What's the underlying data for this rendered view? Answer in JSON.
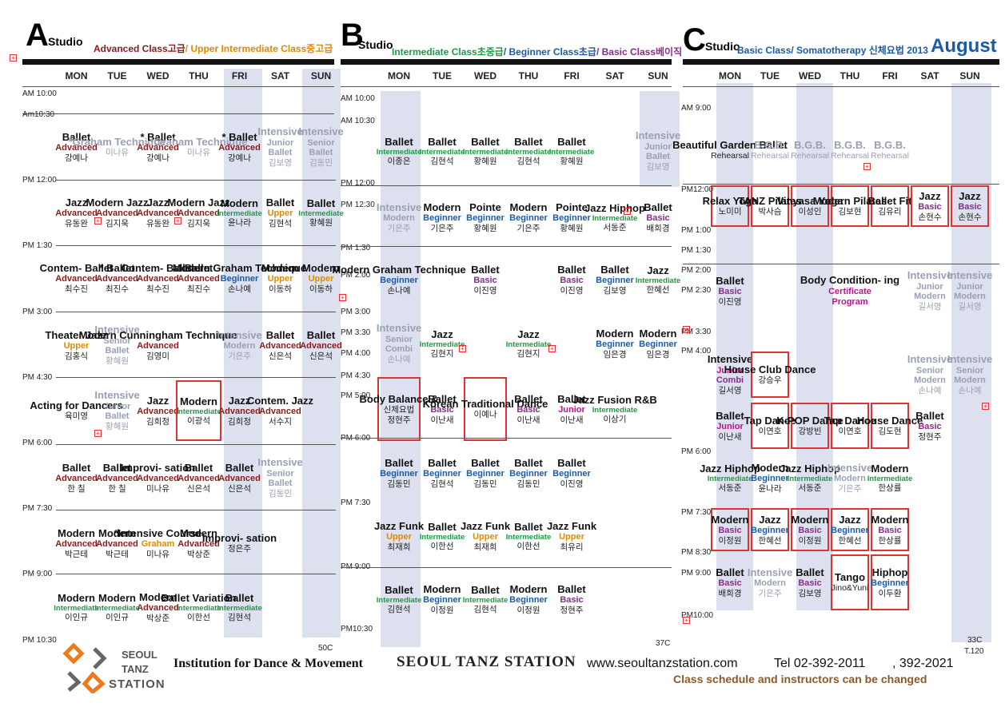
{
  "studios": {
    "A": {
      "letter": "A",
      "word": "Studio",
      "title_adv": "Advanced Class고급",
      "title_sep": "/ ",
      "title_up": "Upper Intermediate Class중고급",
      "corner": "50C"
    },
    "B": {
      "letter": "B",
      "word": "Studio",
      "title_int": "Intermediate Class초중급",
      "title_sep1": "/ ",
      "title_beg": "Beginner Class초급",
      "title_sep2": "/ ",
      "title_basic": "Basic Class베이직",
      "corner": "37C"
    },
    "C": {
      "letter": "C",
      "word": "Studio",
      "title": "Basic Class/ Somatotherapy 신체요법 2013",
      "month": "August",
      "corner": "33C",
      "corner2": "T.120"
    }
  },
  "days": [
    "MON",
    "TUE",
    "WED",
    "THU",
    "FRI",
    "SAT",
    "SUN"
  ],
  "times": {
    "A": [
      "AM 10:00",
      "Am10:30",
      "PM 12:00",
      "PM 1:30",
      "PM 3:00",
      "PM 4:30",
      "PM 6:00",
      "PM 7:30",
      "PM 9:00",
      "PM 10:30"
    ],
    "B": [
      "AM 10:00",
      "AM 10:30",
      "PM 12:00",
      "PM 12:30",
      "PM 1:30",
      "PM 2:00",
      "PM 3:00",
      "PM 3:30",
      "PM 4:00",
      "PM 4:30",
      "PM 5:00",
      "PM 6:00",
      "PM 7:30",
      "PM 9:00",
      "PM10:30"
    ],
    "C": [
      "AM 9:00",
      "PM12:00",
      "PM 1:00",
      "PM 1:30",
      "PM 2:00",
      "PM 2:30",
      "PM 3:30",
      "PM 4:00",
      "PM 6:00",
      "PM 7:30",
      "PM 8:30",
      "PM 9:00",
      "PM10:00"
    ]
  },
  "cells": {
    "A": [
      [
        {
          "t": "Ballet",
          "lv": "Advanced",
          "n": "강예나"
        },
        {
          "t": "*Graham Technique",
          "n": "미나유"
        },
        {
          "t": "* Ballet",
          "lv": "Advanced",
          "n": "강예나"
        },
        {
          "t": "*Graham Technique",
          "n": "미나유"
        },
        {
          "t": "* Ballet",
          "lv": "Advanced",
          "n": "강예나"
        },
        {
          "t": "Intensive",
          "lv": "Junior",
          "lv2": "Ballet",
          "n": "김보영"
        },
        {
          "t": "Intensive",
          "lv": "Senior",
          "lv2": "Ballet",
          "n": "김동민"
        }
      ],
      [
        {
          "t": "Jazz",
          "lv": "Advanced",
          "n": "유동완"
        },
        {
          "t": "Modern Jazz",
          "lv": "Advanced",
          "n": "김지욱"
        },
        {
          "t": "Jazz",
          "lv": "Advanced",
          "n": "유동완"
        },
        {
          "t": "Modern Jazz",
          "lv": "Advanced",
          "n": "김지욱"
        },
        {
          "t": "Modern",
          "lv": "Intermediate",
          "n": "윤나라"
        },
        {
          "t": "Ballet",
          "lv": "Upper",
          "n": "김현석"
        },
        {
          "t": "Ballet",
          "lv": "Intermediate",
          "n": "황혜원"
        }
      ],
      [
        {
          "t": "Contem- Ballet",
          "lv": "Advanced",
          "n": "최수진"
        },
        {
          "t": "* Ballet",
          "lv": "Advanced",
          "n": "최진수"
        },
        {
          "t": "Contem- Ballet",
          "lv": "Advanced",
          "n": "최수진"
        },
        {
          "t": "Ballet",
          "lv": "Advanced",
          "n": "최진수"
        },
        {
          "t": "Modern Graham Technique",
          "lv": "Beginner",
          "n": "손나예"
        },
        {
          "t": "Modern",
          "lv": "Upper",
          "n": "이동하"
        },
        {
          "t": "Modern",
          "lv": "Upper",
          "n": "이동하"
        }
      ],
      [
        {
          "t": "Theater Jazz",
          "lv": "Upper",
          "n": "김홍식"
        },
        {
          "t": "Intensive",
          "lv": "Senior",
          "lv2": "Ballet",
          "n": "황혜원"
        },
        {
          "t": "Modern Cunningham Technique",
          "lv": "Advanced",
          "n": "김영미"
        },
        {},
        {
          "t": "Intensive",
          "t2": "Modern",
          "n": "기은주"
        },
        {
          "t": "Ballet",
          "lv": "Advanced",
          "n": "신은석"
        },
        {
          "t": "Ballet",
          "lv": "Advanced",
          "n": "신은석"
        }
      ],
      [
        {
          "t": "Acting for Dancers",
          "n": "육미영"
        },
        {
          "t": "Intensive",
          "lv": "Junior",
          "lv2": "Ballet",
          "n": "황혜원"
        },
        {
          "t": "Jazz",
          "lv": "Advanced",
          "n": "김희정"
        },
        {
          "t": "Modern",
          "lv": "Intermediate",
          "n": "이광석"
        },
        {
          "t": "Jazz",
          "lv": "Advanced",
          "n": "김희정"
        },
        {
          "t": "Contem. Jazz",
          "lv": "Advanced",
          "n": "서수지"
        },
        {}
      ],
      [
        {
          "t": "Ballet",
          "lv": "Advanced",
          "n": "한 칠"
        },
        {
          "t": "Ballet",
          "lv": "Advanced",
          "n": "한 칠"
        },
        {
          "t": "Improvi- sation",
          "lv": "Advanced",
          "n": "미나유"
        },
        {
          "t": "Ballet",
          "lv": "Advanced",
          "n": "신은석"
        },
        {
          "t": "Ballet",
          "lv": "Advanced",
          "n": "신은석"
        },
        {
          "t": "Intensive",
          "lv": "Senior",
          "lv2": "Ballet",
          "n": "김동민"
        },
        {}
      ],
      [
        {
          "t": "Modern",
          "lv": "Advanced",
          "n": "박근테"
        },
        {
          "t": "Modern",
          "lv": "Advanced",
          "n": "박근테"
        },
        {
          "t": "*Intensive Course",
          "lv": "Graham",
          "n": "미나유"
        },
        {
          "t": "Modern",
          "lv": "Advanced",
          "n": "박상준"
        },
        {
          "t": "Improvi- sation",
          "n": "정은주"
        },
        {},
        {}
      ],
      [
        {
          "t": "Modern",
          "lv": "Intermediate",
          "n": "이인규"
        },
        {
          "t": "Modern",
          "lv": "Intermediate",
          "n": "이인규"
        },
        {
          "t": "Modern",
          "lv": "Advanced",
          "n": "박상준"
        },
        {
          "t": "Ballet Variation",
          "lv": "Intermediate",
          "n": "이한선"
        },
        {
          "t": "Ballet",
          "lv": "Intermediate",
          "n": "김현석"
        },
        {},
        {}
      ]
    ],
    "B": [
      {
        "d": 0,
        "r": "r1",
        "t": "Ballet",
        "lv": "Intermediate",
        "n": "이종은"
      },
      {
        "d": 1,
        "r": "r1",
        "t": "Ballet",
        "lv": "Intermediate",
        "n": "김현석"
      },
      {
        "d": 2,
        "r": "r1",
        "t": "Ballet",
        "lv": "Intermediate",
        "n": "황혜원"
      },
      {
        "d": 3,
        "r": "r1",
        "t": "Ballet",
        "lv": "Intermediate",
        "n": "김현석"
      },
      {
        "d": 4,
        "r": "r1",
        "t": "Ballet",
        "lv": "Intermediate",
        "n": "황혜원"
      },
      {
        "d": 6,
        "r": "r1",
        "t": "Intensive",
        "lv": "Junior",
        "lv2": "Ballet",
        "n": "김보영"
      },
      {
        "d": 0,
        "r": "r2",
        "t": "Intensive",
        "t2": "Modern",
        "n": "기은주"
      },
      {
        "d": 1,
        "r": "r2",
        "t": "Modern",
        "lv": "Beginner",
        "n": "기은주"
      },
      {
        "d": 2,
        "r": "r2",
        "t": "Pointe",
        "lv": "Beginner",
        "n": "황혜원"
      },
      {
        "d": 3,
        "r": "r2",
        "t": "Modern",
        "lv": "Beginner",
        "n": "기은주"
      },
      {
        "d": 4,
        "r": "r2",
        "t": "Pointe",
        "lv": "Beginner",
        "n": "황혜원"
      },
      {
        "d": 5,
        "r": "r2",
        "t": "Jazz Hiphop",
        "lv": "Intermediate",
        "n": "서동준"
      },
      {
        "d": 6,
        "r": "r2",
        "t": "Ballet",
        "lv": "Basic",
        "n": "배희경"
      },
      {
        "d": 0,
        "r": "r3",
        "t": "Modern Graham Technique",
        "lv": "Beginner",
        "n": "손나예"
      },
      {
        "d": 2,
        "r": "r3",
        "t": "Ballet",
        "lv": "Basic",
        "n": "이진영"
      },
      {
        "d": 4,
        "r": "r3",
        "t": "Ballet",
        "lv": "Basic",
        "n": "이진영"
      },
      {
        "d": 5,
        "r": "r3",
        "t": "Ballet",
        "lv": "Beginner",
        "n": "김보영"
      },
      {
        "d": 6,
        "r": "r3",
        "t": "Jazz",
        "lv": "Intermediate",
        "n": "한혜선"
      },
      {
        "d": 0,
        "r": "r4",
        "t": "Intensive",
        "lv": "Senior",
        "lv2": "Combi",
        "n": "손나예"
      },
      {
        "d": 1,
        "r": "r4",
        "t": "Jazz",
        "lv": "Intermediate",
        "n": "김현지"
      },
      {
        "d": 3,
        "r": "r4",
        "t": "Jazz",
        "lv": "Intermediate",
        "n": "김현지"
      },
      {
        "d": 5,
        "r": "r4",
        "t": "Modern",
        "lv": "Beginner",
        "n": "임은경"
      },
      {
        "d": 6,
        "r": "r4",
        "t": "Modern",
        "lv": "Beginner",
        "n": "임은경"
      },
      {
        "d": 0,
        "r": "r5",
        "t": "Body Balance &",
        "lv": "신체요법",
        "n": "정현주"
      },
      {
        "d": 1,
        "r": "r5",
        "t": "Ballet",
        "lv": "Basic",
        "n": "이난새"
      },
      {
        "d": 2,
        "r": "r5",
        "t": "Korean Traditional Dance",
        "n": "이예나"
      },
      {
        "d": 3,
        "r": "r5",
        "t": "Ballet",
        "lv": "Basic",
        "n": "이난새"
      },
      {
        "d": 4,
        "r": "r5",
        "t": "Ballet",
        "lv": "Junior",
        "n": "이난새"
      },
      {
        "d": 5,
        "r": "r5",
        "t": "Jazz Fusion R&B",
        "lv": "Intermediate",
        "n": "이상기"
      },
      {
        "d": 0,
        "r": "r6",
        "t": "Ballet",
        "lv": "Beginner",
        "n": "김동민"
      },
      {
        "d": 1,
        "r": "r6",
        "t": "Ballet",
        "lv": "Beginner",
        "n": "김현석"
      },
      {
        "d": 2,
        "r": "r6",
        "t": "Ballet",
        "lv": "Beginner",
        "n": "김동민"
      },
      {
        "d": 3,
        "r": "r6",
        "t": "Ballet",
        "lv": "Beginner",
        "n": "김동민"
      },
      {
        "d": 4,
        "r": "r6",
        "t": "Ballet",
        "lv": "Beginner",
        "n": "이진영"
      },
      {
        "d": 0,
        "r": "r7",
        "t": "Jazz Funk",
        "lv": "Upper",
        "n": "최재희"
      },
      {
        "d": 1,
        "r": "r7",
        "t": "Ballet",
        "lv": "Intermediate",
        "n": "이한선"
      },
      {
        "d": 2,
        "r": "r7",
        "t": "Jazz Funk",
        "lv": "Upper",
        "n": "최재희"
      },
      {
        "d": 3,
        "r": "r7",
        "t": "Ballet",
        "lv": "Intermediate",
        "n": "이한선"
      },
      {
        "d": 4,
        "r": "r7",
        "t": "Jazz Funk",
        "lv": "Upper",
        "n": "최유리"
      },
      {
        "d": 0,
        "r": "r8",
        "t": "Ballet",
        "lv": "Intermediate",
        "n": "김현석"
      },
      {
        "d": 1,
        "r": "r8",
        "t": "Modern",
        "lv": "Beginner",
        "n": "이정원"
      },
      {
        "d": 2,
        "r": "r8",
        "t": "Ballet",
        "lv": "Intermediate",
        "n": "김현석"
      },
      {
        "d": 3,
        "r": "r8",
        "t": "Modern",
        "lv": "Beginner",
        "n": "이정원"
      },
      {
        "d": 4,
        "r": "r8",
        "t": "Ballet",
        "lv": "Basic",
        "n": "정현주"
      }
    ],
    "C": [
      {
        "d": 0,
        "r": "r0",
        "t": "Beautiful Garden Ballet",
        "n": "Rehearsal"
      },
      {
        "d": 1,
        "r": "r0",
        "t": "B.G.B.",
        "n": "Rehearsal"
      },
      {
        "d": 2,
        "r": "r0",
        "t": "B.G.B.",
        "n": "Rehearsal"
      },
      {
        "d": 3,
        "r": "r0",
        "t": "B.G.B.",
        "n": "Rehearsal"
      },
      {
        "d": 4,
        "r": "r0",
        "t": "B.G.B.",
        "n": "Rehearsal"
      },
      {
        "d": 0,
        "r": "r1",
        "t": "Relax Yoga",
        "n": "노미미"
      },
      {
        "d": 1,
        "r": "r1",
        "t": "TANZ Pilates",
        "n": "박사슴"
      },
      {
        "d": 2,
        "r": "r1",
        "t": "Vinyasa Yoga",
        "n": "이성인"
      },
      {
        "d": 3,
        "r": "r1",
        "t": "Modern Pilates",
        "n": "김보현"
      },
      {
        "d": 4,
        "r": "r1",
        "t": "Ballet Fit",
        "n": "김유리"
      },
      {
        "d": 5,
        "r": "r1",
        "t": "Jazz",
        "lv": "Basic",
        "n": "손현수"
      },
      {
        "d": 6,
        "r": "r1",
        "t": "Jazz",
        "lv": "Basic",
        "n": "손현수"
      },
      {
        "d": 0,
        "r": "r2",
        "t": "Ballet",
        "lv": "Basic",
        "n": "이진영"
      },
      {
        "d": 3,
        "r": "r2",
        "t": "Body Condition- ing",
        "lv": "Certificate",
        "lv2": "Program"
      },
      {
        "d": 5,
        "r": "r2",
        "t": "Intensive",
        "lv": "Junior",
        "lv2": "Modern",
        "n": "길서영"
      },
      {
        "d": 6,
        "r": "r2",
        "t": "Intensive",
        "lv": "Junior",
        "lv2": "Modern",
        "n": "길서영"
      },
      {
        "d": 0,
        "r": "r3",
        "t": "Intensive",
        "lv": "Junior",
        "lv2": "Combi",
        "n": "길서영"
      },
      {
        "d": 1,
        "r": "r3",
        "t": "House Club Dance",
        "n": "강승우"
      },
      {
        "d": 5,
        "r": "r3",
        "t": "Intensive",
        "lv": "Senior",
        "lv2": "Modern",
        "n": "손나예"
      },
      {
        "d": 6,
        "r": "r3",
        "t": "Intensive",
        "lv": "Senior",
        "lv2": "Modern",
        "n": "손나예"
      },
      {
        "d": 0,
        "r": "r4",
        "t": "Ballet",
        "lv": "Junior",
        "n": "이난새"
      },
      {
        "d": 1,
        "r": "r4",
        "t": "Tap Dance",
        "n": "이연호"
      },
      {
        "d": 2,
        "r": "r4",
        "t": "K-POP Dance",
        "n": "강방빈"
      },
      {
        "d": 3,
        "r": "r4",
        "t": "Tap Dance",
        "n": "이연호"
      },
      {
        "d": 4,
        "r": "r4",
        "t": "House Dance",
        "n": "김도현"
      },
      {
        "d": 5,
        "r": "r4",
        "t": "Ballet",
        "lv": "Basic",
        "n": "정현주"
      },
      {
        "d": 0,
        "r": "r5",
        "t": "Jazz Hiphop",
        "lv": "Intermediate",
        "n": "서동준"
      },
      {
        "d": 1,
        "r": "r5",
        "t": "Modern",
        "lv": "Beginner",
        "n": "윤나라"
      },
      {
        "d": 2,
        "r": "r5",
        "t": "Jazz Hiphop",
        "lv": "Intermediate",
        "n": "서동준"
      },
      {
        "d": 3,
        "r": "r5",
        "t": "Intensive",
        "t2": "Modern",
        "n": "기은주"
      },
      {
        "d": 4,
        "r": "r5",
        "t": "Modern",
        "lv": "Intermediate",
        "n": "한상률"
      },
      {
        "d": 0,
        "r": "r6",
        "t": "Modern",
        "lv": "Basic",
        "n": "이정원"
      },
      {
        "d": 1,
        "r": "r6",
        "t": "Jazz",
        "lv": "Beginner",
        "n": "한혜선"
      },
      {
        "d": 2,
        "r": "r6",
        "t": "Modern",
        "lv": "Basic",
        "n": "이정원"
      },
      {
        "d": 3,
        "r": "r6",
        "t": "Jazz",
        "lv": "Beginner",
        "n": "한혜선"
      },
      {
        "d": 4,
        "r": "r6",
        "t": "Modern",
        "lv": "Basic",
        "n": "한상률"
      },
      {
        "d": 0,
        "r": "r7",
        "t": "Ballet",
        "lv": "Basic",
        "n": "배희경"
      },
      {
        "d": 1,
        "r": "r7",
        "t": "Intensive",
        "t2": "Modern",
        "n": "기은주"
      },
      {
        "d": 2,
        "r": "r7",
        "t": "Ballet",
        "lv": "Basic",
        "n": "김보영"
      },
      {
        "d": 3,
        "r": "r7",
        "t": "Tango",
        "n": "Jino&Yuni"
      },
      {
        "d": 4,
        "r": "r7",
        "t": "Hiphop",
        "lv": "Beginner",
        "n": "이두환"
      }
    ]
  },
  "footer": {
    "logo_l1": "SEOUL",
    "logo_l2": "TANZ",
    "logo_l3": "STATION",
    "institution": "Institution for Dance & Movement",
    "brand": "SEOUL TANZ STATION",
    "website": "www.seoultanzstation.com",
    "tel": "Tel 02-392-2011",
    "tel2": ", 392-2021",
    "notice": "Class schedule and instructors can be changed"
  },
  "colors": {
    "advanced": "#8b1a1a",
    "intermediate": "#1f9a44",
    "beginner": "#1a5aa8",
    "basic": "#8a2d8a",
    "upper": "#e08a00",
    "junior": "#c0128a",
    "highlight": "#dde0ef",
    "box": "#dd3333",
    "month": "#1a5aa8"
  }
}
